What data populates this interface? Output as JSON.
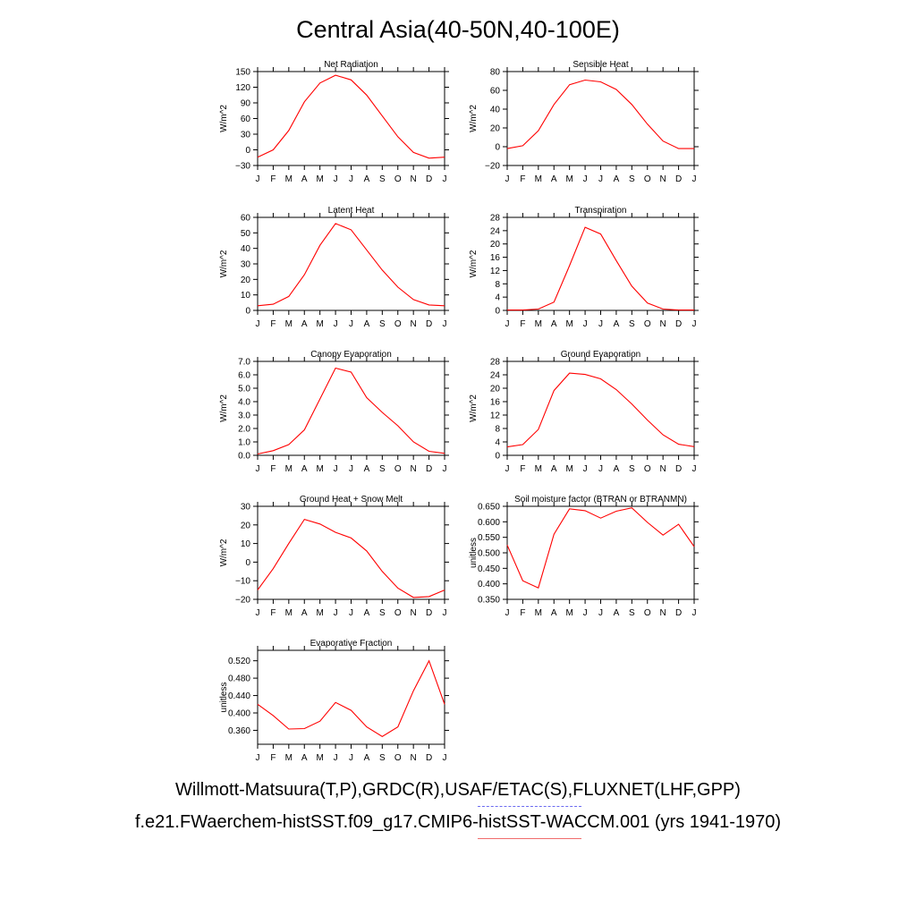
{
  "title": "Central Asia(40-50N,40-100E)",
  "footer": {
    "line1": "Willmott-Matsuura(T,P),GRDC(R),USAF/ETAC(S),FLUXNET(LHF,GPP)",
    "line2": "f.e21.FWaerchem-histSST.f09_g17.CMIP6-histSST-WACCM.001 (yrs 1941-1970)"
  },
  "colors": {
    "model": "#ff0000",
    "obs_legend": "#6b6bf0",
    "model_legend": "#f06b6b",
    "axis": "#000000"
  },
  "chart_data": [
    {
      "type": "line",
      "title": "Net Radiation",
      "ylabel": "W/m^2",
      "x": [
        "J",
        "F",
        "M",
        "A",
        "M",
        "J",
        "J",
        "A",
        "S",
        "O",
        "N",
        "D",
        "J"
      ],
      "ylim": [
        -30,
        150
      ],
      "yticks": [
        -30,
        0,
        30,
        60,
        90,
        120,
        150
      ],
      "ytick_labels": [
        "−30",
        "0",
        "30",
        "60",
        "90",
        "120",
        "150"
      ],
      "series": [
        {
          "values": [
            -14,
            0,
            37,
            92,
            128,
            143,
            134,
            105,
            65,
            25,
            -5,
            -16,
            -14
          ]
        }
      ]
    },
    {
      "type": "line",
      "title": "Sensible Heat",
      "ylabel": "W/m^2",
      "x": [
        "J",
        "F",
        "M",
        "A",
        "M",
        "J",
        "J",
        "A",
        "S",
        "O",
        "N",
        "D",
        "J"
      ],
      "ylim": [
        -20,
        80
      ],
      "yticks": [
        -20,
        0,
        20,
        40,
        60,
        80
      ],
      "ytick_labels": [
        "−20",
        "0",
        "20",
        "40",
        "60",
        "80"
      ],
      "series": [
        {
          "values": [
            -2,
            1,
            17,
            45,
            66,
            71,
            69,
            61,
            45,
            24,
            6,
            -2,
            -2
          ]
        }
      ]
    },
    {
      "type": "line",
      "title": "Latent Heat",
      "ylabel": "W/m^2",
      "x": [
        "J",
        "F",
        "M",
        "A",
        "M",
        "J",
        "J",
        "A",
        "S",
        "O",
        "N",
        "D",
        "J"
      ],
      "ylim": [
        0,
        60
      ],
      "yticks": [
        0,
        10,
        20,
        30,
        40,
        50,
        60
      ],
      "ytick_labels": [
        "0",
        "10",
        "20",
        "30",
        "40",
        "50",
        "60"
      ],
      "series": [
        {
          "values": [
            3,
            4,
            9,
            23,
            42,
            56,
            52,
            39,
            26,
            15,
            7,
            3.5,
            3
          ]
        }
      ]
    },
    {
      "type": "line",
      "title": "Transpiration",
      "ylabel": "W/m^2",
      "x": [
        "J",
        "F",
        "M",
        "A",
        "M",
        "J",
        "J",
        "A",
        "S",
        "O",
        "N",
        "D",
        "J"
      ],
      "ylim": [
        0,
        28
      ],
      "yticks": [
        0,
        4,
        8,
        12,
        16,
        20,
        24,
        28
      ],
      "ytick_labels": [
        "0",
        "4",
        "8",
        "12",
        "16",
        "20",
        "24",
        "28"
      ],
      "series": [
        {
          "values": [
            0.1,
            0.1,
            0.4,
            2.5,
            13.5,
            25,
            23,
            15,
            7.3,
            2.2,
            0.4,
            0.1,
            0.1
          ]
        }
      ]
    },
    {
      "type": "line",
      "title": "Canopy Evaporation",
      "ylabel": "W/m^2",
      "x": [
        "J",
        "F",
        "M",
        "A",
        "M",
        "J",
        "J",
        "A",
        "S",
        "O",
        "N",
        "D",
        "J"
      ],
      "ylim": [
        0,
        7
      ],
      "yticks": [
        0,
        1,
        2,
        3,
        4,
        5,
        6,
        7
      ],
      "ytick_labels": [
        "0.0",
        "1.0",
        "2.0",
        "3.0",
        "4.0",
        "5.0",
        "6.0",
        "7.0"
      ],
      "series": [
        {
          "values": [
            0.1,
            0.35,
            0.8,
            1.9,
            4.2,
            6.5,
            6.2,
            4.3,
            3.2,
            2.2,
            1.0,
            0.3,
            0.15
          ]
        }
      ]
    },
    {
      "type": "line",
      "title": "Ground Evaporation",
      "ylabel": "W/m^2",
      "x": [
        "J",
        "F",
        "M",
        "A",
        "M",
        "J",
        "J",
        "A",
        "S",
        "O",
        "N",
        "D",
        "J"
      ],
      "ylim": [
        0,
        28
      ],
      "yticks": [
        0,
        4,
        8,
        12,
        16,
        20,
        24,
        28
      ],
      "ytick_labels": [
        "0",
        "4",
        "8",
        "12",
        "16",
        "20",
        "24",
        "28"
      ],
      "series": [
        {
          "values": [
            2.5,
            3.2,
            7.7,
            19.3,
            24.5,
            24.1,
            22.8,
            19.6,
            15.3,
            10.5,
            6.1,
            3.3,
            2.6
          ]
        }
      ]
    },
    {
      "type": "line",
      "title": "Ground Heat + Snow Melt",
      "ylabel": "W/m^2",
      "x": [
        "J",
        "F",
        "M",
        "A",
        "M",
        "J",
        "J",
        "A",
        "S",
        "O",
        "N",
        "D",
        "J"
      ],
      "ylim": [
        -20,
        30
      ],
      "yticks": [
        -20,
        -10,
        0,
        10,
        20,
        30
      ],
      "ytick_labels": [
        "−20",
        "−10",
        "0",
        "10",
        "20",
        "30"
      ],
      "series": [
        {
          "values": [
            -15,
            -3.5,
            10,
            23,
            20.5,
            16,
            13,
            6,
            -5,
            -14,
            -19,
            -18.5,
            -15
          ]
        }
      ]
    },
    {
      "type": "line",
      "title": "Soil moisture factor (BTRAN or BTRANMN)",
      "ylabel": "unitless",
      "x": [
        "J",
        "F",
        "M",
        "A",
        "M",
        "J",
        "J",
        "A",
        "S",
        "O",
        "N",
        "D",
        "J"
      ],
      "ylim": [
        0.35,
        0.65
      ],
      "yticks": [
        0.35,
        0.4,
        0.45,
        0.5,
        0.55,
        0.6,
        0.65
      ],
      "ytick_labels": [
        "0.350",
        "0.400",
        "0.450",
        "0.500",
        "0.550",
        "0.600",
        "0.650"
      ],
      "series": [
        {
          "values": [
            0.525,
            0.41,
            0.387,
            0.56,
            0.642,
            0.636,
            0.612,
            0.634,
            0.645,
            0.598,
            0.557,
            0.592,
            0.52
          ]
        }
      ]
    },
    {
      "type": "line",
      "title": "Evaporative Fraction",
      "ylabel": "unitless",
      "x": [
        "J",
        "F",
        "M",
        "A",
        "M",
        "J",
        "J",
        "A",
        "S",
        "O",
        "N",
        "D",
        "J"
      ],
      "ylim": [
        0.328,
        0.544
      ],
      "yticks": [
        0.36,
        0.4,
        0.44,
        0.48,
        0.52
      ],
      "ytick_labels": [
        "0.360",
        "0.400",
        "0.440",
        "0.480",
        "0.520"
      ],
      "series": [
        {
          "values": [
            0.42,
            0.394,
            0.363,
            0.364,
            0.381,
            0.424,
            0.406,
            0.368,
            0.346,
            0.368,
            0.451,
            0.52,
            0.42
          ]
        }
      ]
    }
  ]
}
